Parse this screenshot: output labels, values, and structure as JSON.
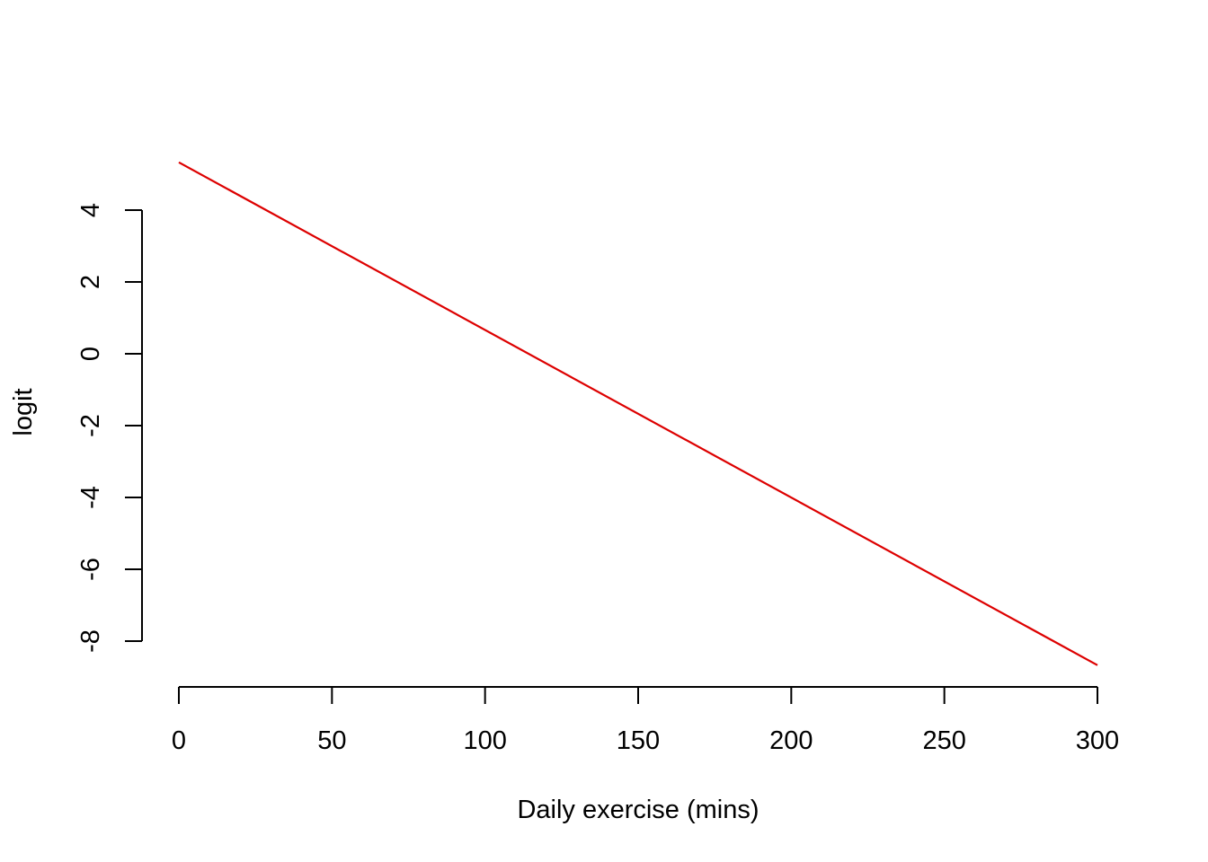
{
  "chart_data": {
    "type": "line",
    "title": "",
    "xlabel": "Daily exercise (mins)",
    "ylabel": "logit",
    "xlim": [
      0,
      300
    ],
    "ylim": [
      -8,
      4
    ],
    "x_ticks": [
      0,
      50,
      100,
      150,
      200,
      250,
      300
    ],
    "y_ticks": [
      -8,
      -6,
      -4,
      -2,
      0,
      2,
      4
    ],
    "grid": false,
    "legend": "none",
    "series": [
      {
        "color": "#dd0000",
        "x": [
          0,
          300
        ],
        "y": [
          5.33,
          -8.67
        ]
      }
    ]
  }
}
